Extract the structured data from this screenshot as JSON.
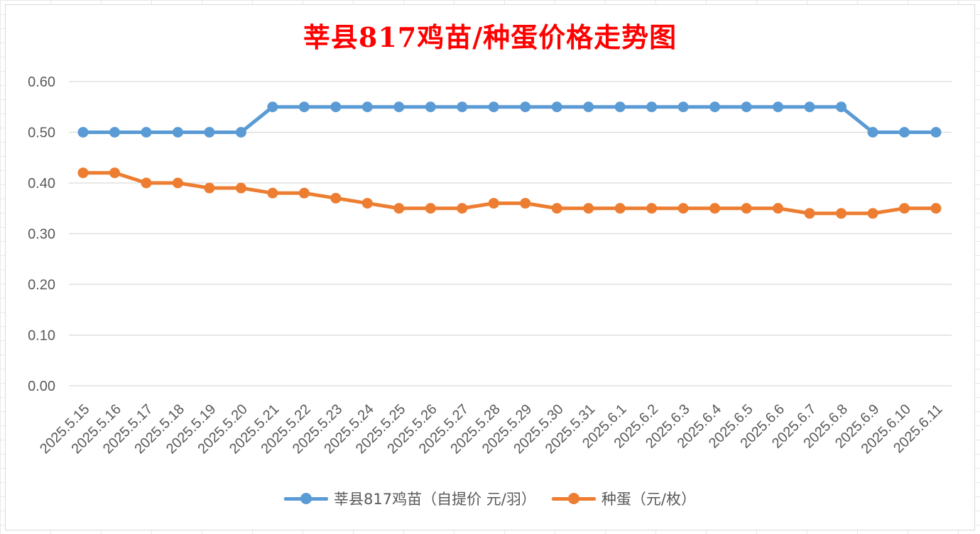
{
  "chart_data": {
    "type": "line",
    "title": "莘县817鸡苗/种蛋价格走势图",
    "xlabel": "",
    "ylabel": "",
    "ylim": [
      0,
      0.6
    ],
    "yticks": [
      "0.00",
      "0.10",
      "0.20",
      "0.30",
      "0.40",
      "0.50",
      "0.60"
    ],
    "grid": true,
    "legend_position": "bottom",
    "categories": [
      "2025.5.15",
      "2025.5.16",
      "2025.5.17",
      "2025.5.18",
      "2025.5.19",
      "2025.5.20",
      "2025.5.21",
      "2025.5.22",
      "2025.5.23",
      "2025.5.24",
      "2025.5.25",
      "2025.5.26",
      "2025.5.27",
      "2025.5.28",
      "2025.5.29",
      "2025.5.30",
      "2025.5.31",
      "2025.6.1",
      "2025.6.2",
      "2025.6.3",
      "2025.6.4",
      "2025.6.5",
      "2025.6.6",
      "2025.6.7",
      "2025.6.8",
      "2025.6.9",
      "2025.6.10",
      "2025.6.11"
    ],
    "series": [
      {
        "name": "莘县817鸡苗（自提价 元/羽）",
        "color": "#5b9bd5",
        "values": [
          0.5,
          0.5,
          0.5,
          0.5,
          0.5,
          0.5,
          0.55,
          0.55,
          0.55,
          0.55,
          0.55,
          0.55,
          0.55,
          0.55,
          0.55,
          0.55,
          0.55,
          0.55,
          0.55,
          0.55,
          0.55,
          0.55,
          0.55,
          0.55,
          0.55,
          0.5,
          0.5,
          0.5
        ]
      },
      {
        "name": "种蛋（元/枚）",
        "color": "#ed7d31",
        "values": [
          0.42,
          0.42,
          0.4,
          0.4,
          0.39,
          0.39,
          0.38,
          0.38,
          0.37,
          0.36,
          0.35,
          0.35,
          0.35,
          0.36,
          0.36,
          0.35,
          0.35,
          0.35,
          0.35,
          0.35,
          0.35,
          0.35,
          0.35,
          0.34,
          0.34,
          0.34,
          0.35,
          0.35
        ]
      }
    ]
  }
}
